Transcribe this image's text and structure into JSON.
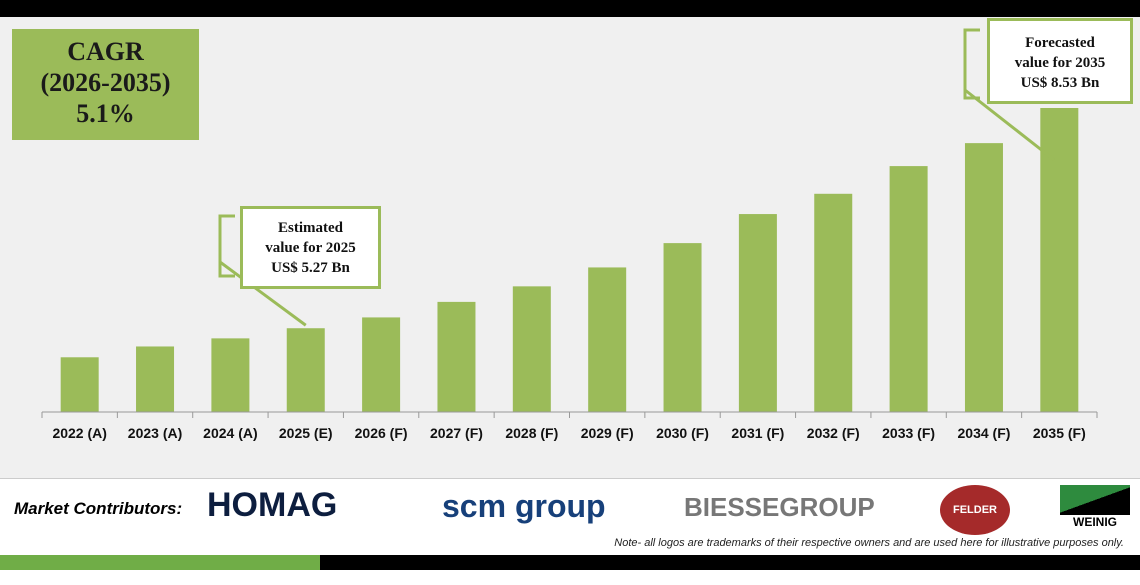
{
  "chart_data": {
    "type": "bar",
    "categories": [
      "2022 (A)",
      "2023 (A)",
      "2024 (A)",
      "2025 (E)",
      "2026 (F)",
      "2027 (F)",
      "2028 (F)",
      "2029 (F)",
      "2030 (F)",
      "2031 (F)",
      "2032 (F)",
      "2033 (F)",
      "2034 (F)",
      "2035 (F)"
    ],
    "values": [
      4.84,
      5.0,
      5.12,
      5.27,
      5.43,
      5.66,
      5.89,
      6.17,
      6.53,
      6.96,
      7.26,
      7.67,
      8.01,
      8.53
    ],
    "unit": "US$ Bn",
    "ylim": [
      4.03,
      9.0
    ],
    "grid": false,
    "bar_color": "#9bbb59"
  },
  "cagr": {
    "line1": "CAGR",
    "line2": "(2026-2035)",
    "line3": "5.1%"
  },
  "callout_2025": {
    "line1": "Estimated",
    "line2": "value for 2025",
    "line3": "US$ 5.27 Bn"
  },
  "callout_2035": {
    "line1": "Forecasted",
    "line2": "value for 2035",
    "line3": "US$ 8.53 Bn"
  },
  "footer": {
    "contributors_label": "Market Contributors:",
    "logos": [
      "HOMAG",
      "scm group",
      "BIESSEGROUP",
      "FELDER GROUP",
      "WEINIG"
    ],
    "note": "Note- all logos are trademarks of their respective owners and are used here for illustrative purposes only."
  },
  "colors": {
    "accent": "#9bbb59",
    "brand_green": "#70ad47"
  }
}
